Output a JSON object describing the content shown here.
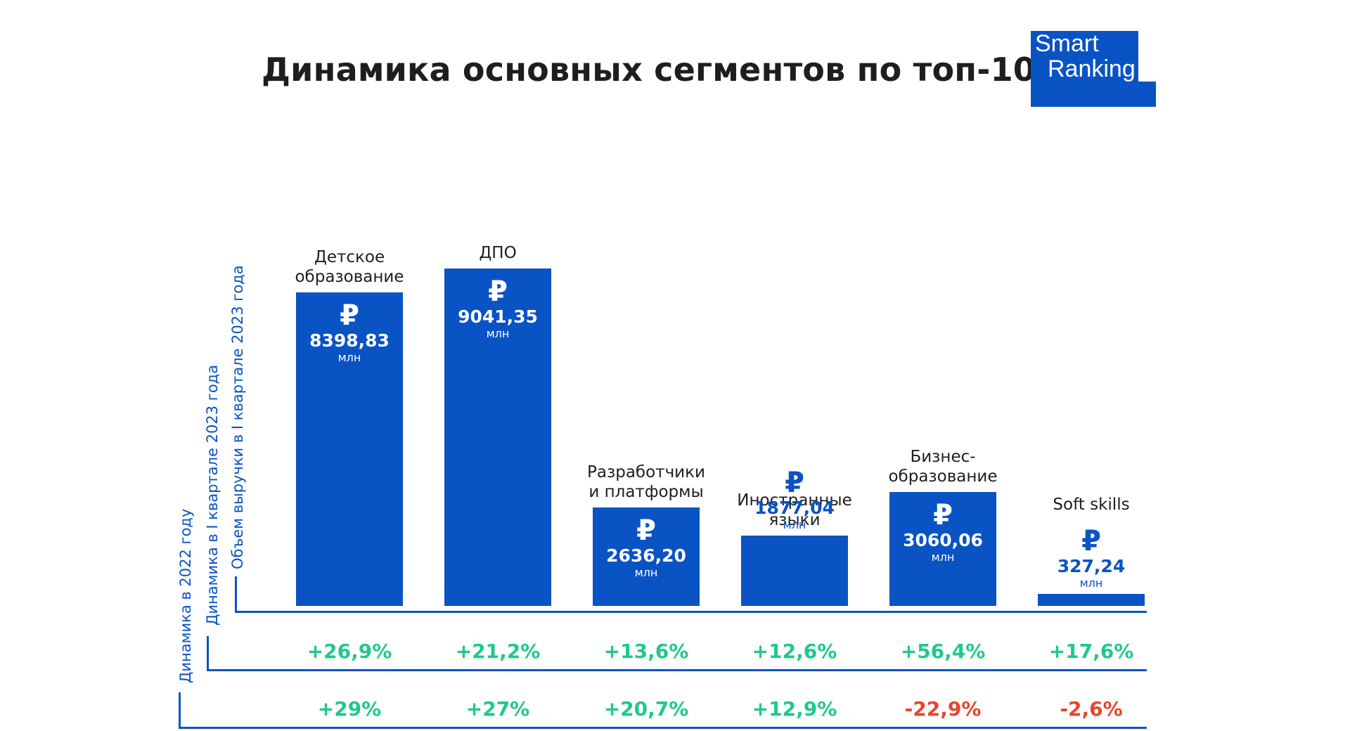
{
  "title": "Динамика основных сегментов по топ-100",
  "logo": {
    "line1": "Smart",
    "line2": "Ranking"
  },
  "axis_labels": {
    "revenue": "Объем выручки в I квартале 2023 года",
    "dynamics_q1": "Динамика в I квартале 2023 года",
    "dynamics_2022": "Динамика в 2022 году"
  },
  "colors": {
    "bar": "#0a53c4",
    "positive": "#1fc98a",
    "negative": "#e8452c",
    "text": "#1e1e1e"
  },
  "currency_symbol": "₽",
  "unit": "млн",
  "chart_data": {
    "type": "bar",
    "categories": [
      "Детское образование",
      "ДПО",
      "Разработчики и платформы",
      "Иностранные языки",
      "Бизнес-образование",
      "Soft skills"
    ],
    "category_lines": [
      [
        "Детское",
        "образование"
      ],
      [
        "ДПО"
      ],
      [
        "Разработчики",
        "и платформы"
      ],
      [
        "Иностранные",
        "языки"
      ],
      [
        "Бизнес-",
        "образование"
      ],
      [
        "Soft skills"
      ]
    ],
    "values": [
      8398.83,
      9041.35,
      2636.2,
      1877.04,
      3060.06,
      327.24
    ],
    "value_labels": [
      "8398,83",
      "9041,35",
      "2636,20",
      "1877,04",
      "3060,06",
      "327,24"
    ],
    "ylabel": "Объем выручки в I квартале 2023 года",
    "dynamics_q1_2023": [
      "+26,9%",
      "+21,2%",
      "+13,6%",
      "+12,6%",
      "+56,4%",
      "+17,6%"
    ],
    "dynamics_2022": [
      "+29%",
      "+27%",
      "+20,7%",
      "+12,9%",
      "-22,9%",
      "-2,6%"
    ]
  }
}
